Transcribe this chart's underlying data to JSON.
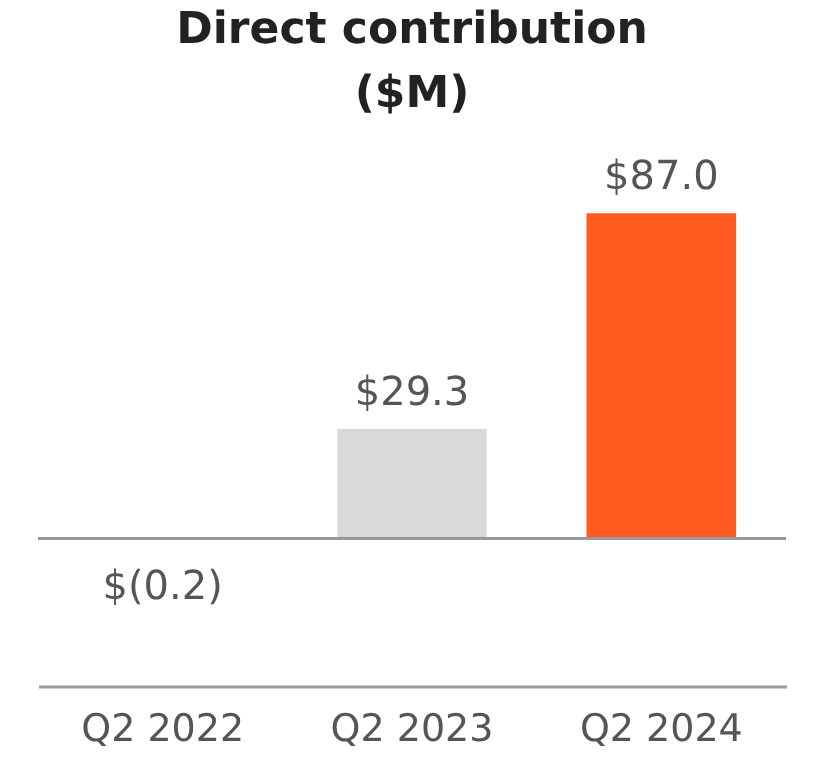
{
  "chart_data": {
    "type": "bar",
    "title": "Direct contribution ($M)",
    "categories": [
      "Q2 2022",
      "Q2 2023",
      "Q2 2024"
    ],
    "values": [
      -0.2,
      29.3,
      87.0
    ],
    "colors": [
      "#d9d9d9",
      "#d9d9d9",
      "#ff5a1f"
    ],
    "value_labels": [
      "$(0.2)",
      "$29.3",
      "$87.0"
    ],
    "ref_lines": [
      {
        "axis": "y",
        "value": 0,
        "color": "#999999"
      }
    ],
    "grid": false
  }
}
